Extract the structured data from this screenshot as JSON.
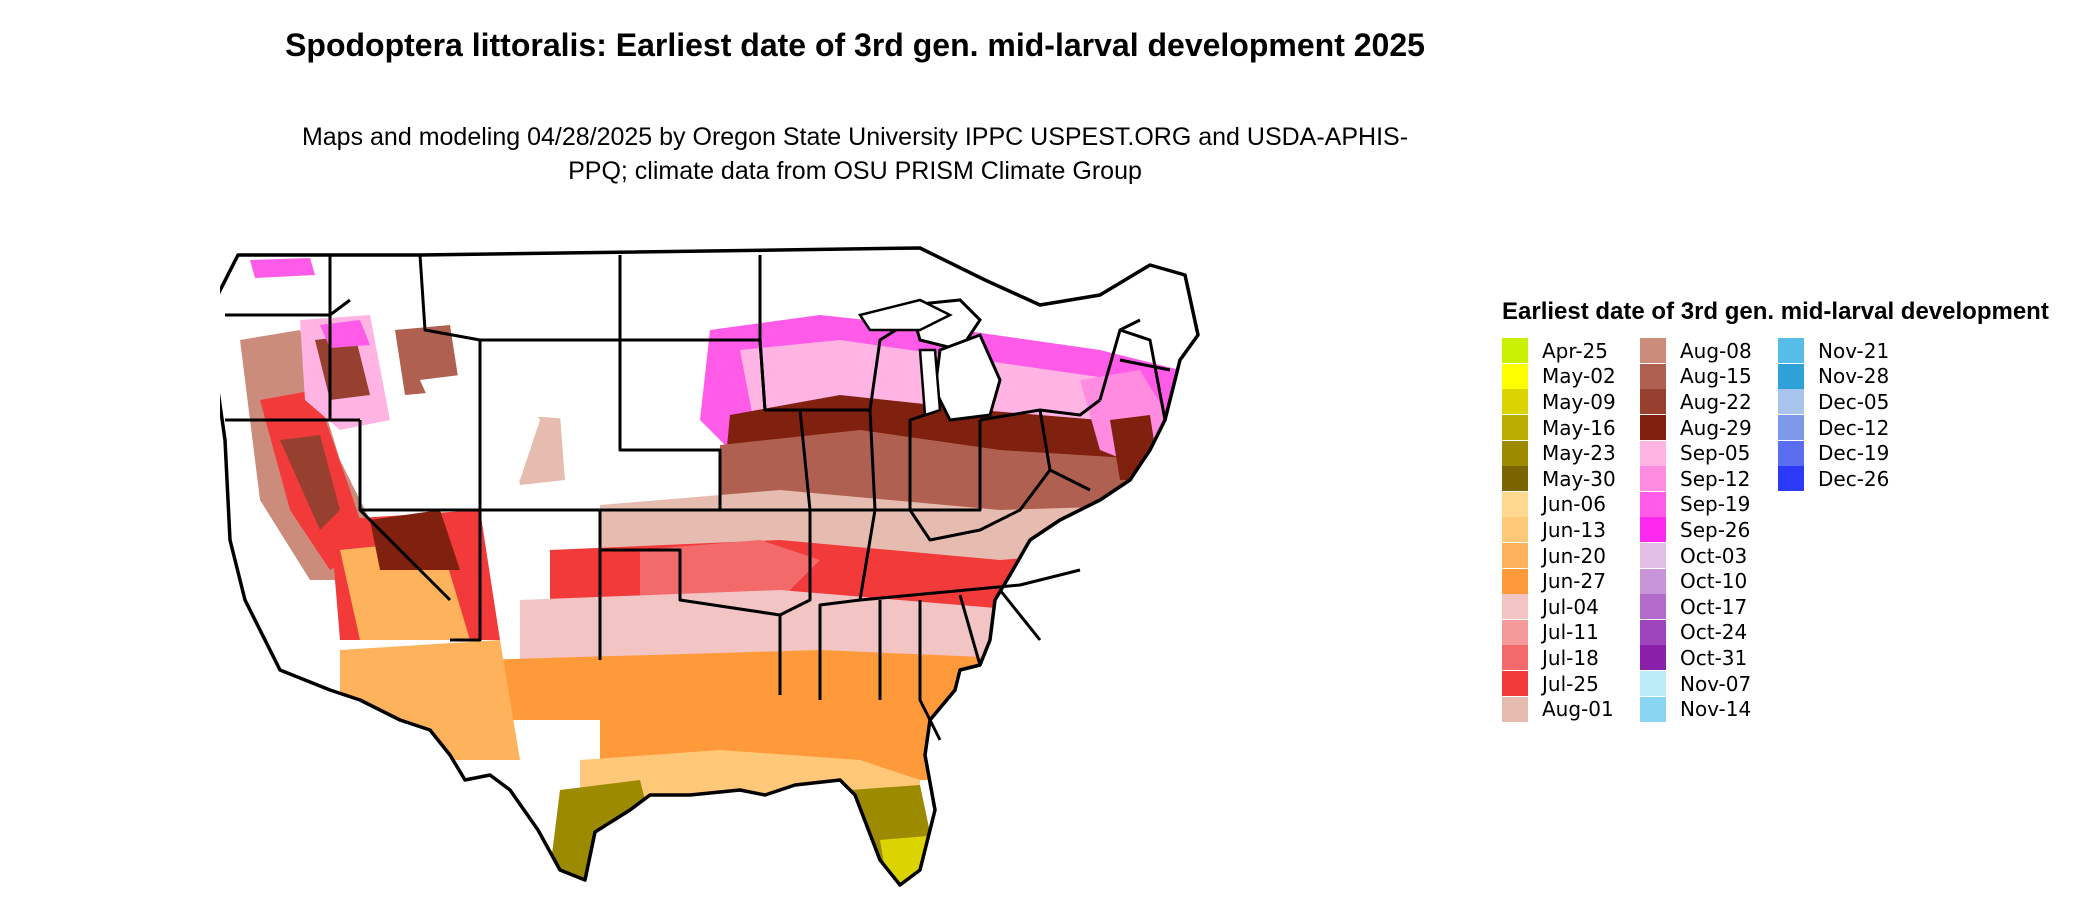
{
  "title": "Spodoptera littoralis: Earliest date of 3rd gen. mid-larval development 2025",
  "subtitle": "Maps and modeling 04/28/2025 by Oregon State University IPPC USPEST.ORG and USDA-APHIS-PPQ; climate data from OSU PRISM Climate Group",
  "legend": {
    "title": "Earliest date of 3rd gen. mid-larval development",
    "columns": [
      [
        {
          "label": "Apr-25",
          "color": "#c8f000"
        },
        {
          "label": "May-02",
          "color": "#ffff00"
        },
        {
          "label": "May-09",
          "color": "#dcd400"
        },
        {
          "label": "May-16",
          "color": "#bcae00"
        },
        {
          "label": "May-23",
          "color": "#9c8a00"
        },
        {
          "label": "May-30",
          "color": "#7a6400"
        },
        {
          "label": "Jun-06",
          "color": "#ffd890"
        },
        {
          "label": "Jun-13",
          "color": "#ffc878"
        },
        {
          "label": "Jun-20",
          "color": "#ffb25c"
        },
        {
          "label": "Jun-27",
          "color": "#ff9a3a"
        },
        {
          "label": "Jul-04",
          "color": "#f2c4c4"
        },
        {
          "label": "Jul-11",
          "color": "#f49a9a"
        },
        {
          "label": "Jul-18",
          "color": "#f26a6a"
        },
        {
          "label": "Jul-25",
          "color": "#f23a3a"
        },
        {
          "label": "Aug-01",
          "color": "#e6bcb0"
        }
      ],
      [
        {
          "label": "Aug-08",
          "color": "#cc8c7c"
        },
        {
          "label": "Aug-15",
          "color": "#b06050"
        },
        {
          "label": "Aug-22",
          "color": "#984030"
        },
        {
          "label": "Aug-29",
          "color": "#80200e"
        },
        {
          "label": "Sep-05",
          "color": "#ffb4e4"
        },
        {
          "label": "Sep-12",
          "color": "#ff8ce0"
        },
        {
          "label": "Sep-19",
          "color": "#ff5ae8"
        },
        {
          "label": "Sep-26",
          "color": "#ff28ee"
        },
        {
          "label": "Oct-03",
          "color": "#e2c0e6"
        },
        {
          "label": "Oct-10",
          "color": "#c896d8"
        },
        {
          "label": "Oct-17",
          "color": "#b46ccc"
        },
        {
          "label": "Oct-24",
          "color": "#9e44bc"
        },
        {
          "label": "Oct-31",
          "color": "#8a20aa"
        },
        {
          "label": "Nov-07",
          "color": "#bcecf8"
        },
        {
          "label": "Nov-14",
          "color": "#88d6f2"
        }
      ],
      [
        {
          "label": "Nov-21",
          "color": "#56bce8"
        },
        {
          "label": "Nov-28",
          "color": "#2ea2d8"
        },
        {
          "label": "Dec-05",
          "color": "#a8c4ec"
        },
        {
          "label": "Dec-12",
          "color": "#7e98ea"
        },
        {
          "label": "Dec-19",
          "color": "#5a6ef0"
        },
        {
          "label": "Dec-26",
          "color": "#2a3af8"
        }
      ]
    ]
  }
}
